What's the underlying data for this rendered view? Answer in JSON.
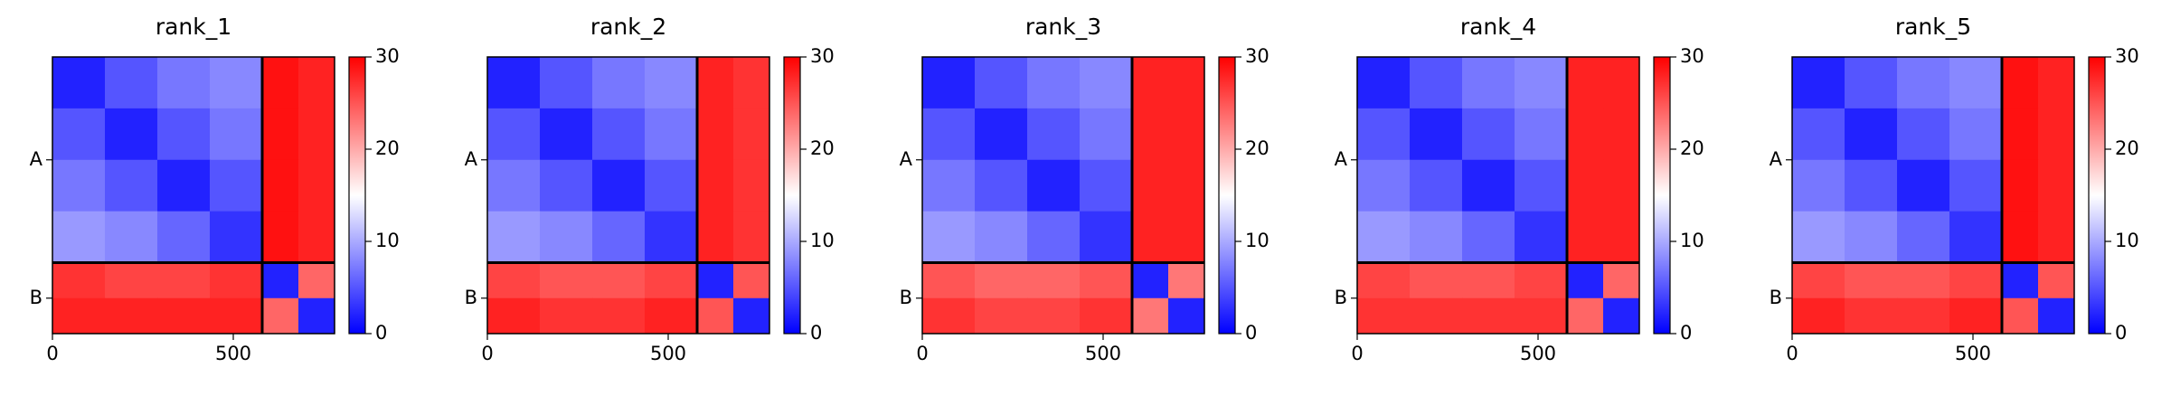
{
  "chart_data": [
    {
      "type": "heatmap",
      "title": "rank_1",
      "xlim": [
        0,
        780
      ],
      "xticks": [
        0,
        500
      ],
      "ylim": [
        780,
        0
      ],
      "yticks": [
        {
          "value": 290,
          "label": "A"
        },
        {
          "value": 680,
          "label": "B"
        }
      ],
      "edges": [
        0,
        145,
        290,
        435,
        580,
        680,
        780
      ],
      "boundary": 580,
      "z": [
        [
          2,
          5,
          7,
          8,
          29,
          28
        ],
        [
          5,
          2,
          5,
          7,
          29,
          28
        ],
        [
          7,
          5,
          2,
          5,
          29,
          28
        ],
        [
          9,
          8,
          6,
          3,
          29,
          28
        ],
        [
          27,
          26,
          26,
          27,
          2,
          24
        ],
        [
          28,
          28,
          28,
          28,
          24,
          2
        ]
      ],
      "clim": [
        0,
        30
      ],
      "cticks": [
        0,
        10,
        20,
        30
      ],
      "colormap": [
        "#0000ff",
        "#ffffff",
        "#ff0000"
      ]
    },
    {
      "type": "heatmap",
      "title": "rank_2",
      "xlim": [
        0,
        780
      ],
      "xticks": [
        0,
        500
      ],
      "ylim": [
        780,
        0
      ],
      "yticks": [
        {
          "value": 290,
          "label": "A"
        },
        {
          "value": 680,
          "label": "B"
        }
      ],
      "edges": [
        0,
        145,
        290,
        435,
        580,
        680,
        780
      ],
      "boundary": 580,
      "z": [
        [
          2,
          5,
          7,
          8,
          28,
          27
        ],
        [
          5,
          2,
          5,
          7,
          28,
          27
        ],
        [
          7,
          5,
          2,
          5,
          28,
          27
        ],
        [
          9,
          8,
          6,
          3,
          28,
          27
        ],
        [
          26,
          25,
          25,
          26,
          2,
          25
        ],
        [
          28,
          27,
          27,
          28,
          25,
          2
        ]
      ],
      "clim": [
        0,
        30
      ],
      "cticks": [
        0,
        10,
        20,
        30
      ],
      "colormap": [
        "#0000ff",
        "#ffffff",
        "#ff0000"
      ]
    },
    {
      "type": "heatmap",
      "title": "rank_3",
      "xlim": [
        0,
        780
      ],
      "xticks": [
        0,
        500
      ],
      "ylim": [
        780,
        0
      ],
      "yticks": [
        {
          "value": 290,
          "label": "A"
        },
        {
          "value": 680,
          "label": "B"
        }
      ],
      "edges": [
        0,
        145,
        290,
        435,
        580,
        680,
        780
      ],
      "boundary": 580,
      "z": [
        [
          2,
          5,
          7,
          8,
          28,
          28
        ],
        [
          5,
          2,
          5,
          7,
          28,
          28
        ],
        [
          7,
          5,
          2,
          5,
          28,
          28
        ],
        [
          9,
          8,
          6,
          3,
          28,
          28
        ],
        [
          25,
          24,
          24,
          25,
          2,
          23
        ],
        [
          27,
          26,
          26,
          27,
          23,
          2
        ]
      ],
      "clim": [
        0,
        30
      ],
      "cticks": [
        0,
        10,
        20,
        30
      ],
      "colormap": [
        "#0000ff",
        "#ffffff",
        "#ff0000"
      ]
    },
    {
      "type": "heatmap",
      "title": "rank_4",
      "xlim": [
        0,
        780
      ],
      "xticks": [
        0,
        500
      ],
      "ylim": [
        780,
        0
      ],
      "yticks": [
        {
          "value": 290,
          "label": "A"
        },
        {
          "value": 680,
          "label": "B"
        }
      ],
      "edges": [
        0,
        145,
        290,
        435,
        580,
        680,
        780
      ],
      "boundary": 580,
      "z": [
        [
          2,
          5,
          7,
          8,
          28,
          28
        ],
        [
          5,
          2,
          5,
          7,
          28,
          28
        ],
        [
          7,
          5,
          2,
          5,
          28,
          28
        ],
        [
          9,
          8,
          6,
          3,
          28,
          28
        ],
        [
          26,
          25,
          25,
          26,
          2,
          24
        ],
        [
          27,
          27,
          27,
          27,
          24,
          2
        ]
      ],
      "clim": [
        0,
        30
      ],
      "cticks": [
        0,
        10,
        20,
        30
      ],
      "colormap": [
        "#0000ff",
        "#ffffff",
        "#ff0000"
      ]
    },
    {
      "type": "heatmap",
      "title": "rank_5",
      "xlim": [
        0,
        780
      ],
      "xticks": [
        0,
        500
      ],
      "ylim": [
        780,
        0
      ],
      "yticks": [
        {
          "value": 290,
          "label": "A"
        },
        {
          "value": 680,
          "label": "B"
        }
      ],
      "edges": [
        0,
        145,
        290,
        435,
        580,
        680,
        780
      ],
      "boundary": 580,
      "z": [
        [
          2,
          5,
          7,
          8,
          29,
          28
        ],
        [
          5,
          2,
          5,
          7,
          29,
          28
        ],
        [
          7,
          5,
          2,
          5,
          29,
          28
        ],
        [
          9,
          8,
          6,
          3,
          29,
          28
        ],
        [
          26,
          25,
          25,
          26,
          2,
          25
        ],
        [
          28,
          27,
          27,
          28,
          25,
          2
        ]
      ],
      "clim": [
        0,
        30
      ],
      "cticks": [
        0,
        10,
        20,
        30
      ],
      "colormap": [
        "#0000ff",
        "#ffffff",
        "#ff0000"
      ]
    }
  ]
}
